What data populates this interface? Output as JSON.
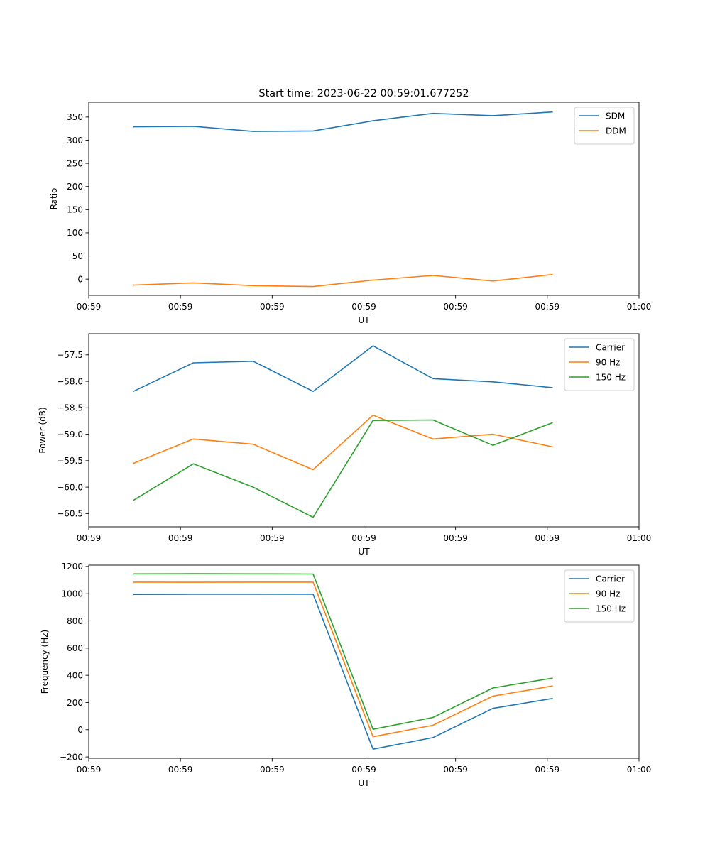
{
  "figure": {
    "title": "Start time: 2023-06-22 00:59:01.677252"
  },
  "colors": {
    "blue": "#1f77b4",
    "orange": "#ff7f0e",
    "green": "#2ca02c"
  },
  "chart_data": [
    {
      "type": "line",
      "xlabel": "UT",
      "ylabel": "Ratio",
      "xlim": [
        0,
        9
      ],
      "ylim": [
        -35,
        382
      ],
      "xticks": [
        0,
        1.5,
        3,
        4.5,
        6,
        7.5,
        9
      ],
      "xtick_labels": [
        "00:59",
        "00:59",
        "00:59",
        "00:59",
        "00:59",
        "00:59",
        "01:00"
      ],
      "yticks": [
        0,
        50,
        100,
        150,
        200,
        250,
        300,
        350
      ],
      "ytick_labels": [
        "0",
        "50",
        "100",
        "150",
        "200",
        "250",
        "300",
        "350"
      ],
      "x": [
        0.73,
        1.71,
        2.69,
        3.67,
        4.65,
        5.63,
        6.61,
        7.59
      ],
      "legend": "upper right",
      "series": [
        {
          "name": "SDM",
          "color": "#1f77b4",
          "values": [
            329,
            330,
            319,
            320,
            342,
            358,
            353,
            361
          ]
        },
        {
          "name": "DDM",
          "color": "#ff7f0e",
          "values": [
            -13,
            -8,
            -14,
            -16,
            -2,
            8,
            -4,
            10
          ]
        }
      ]
    },
    {
      "type": "line",
      "xlabel": "UT",
      "ylabel": "Power (dB)",
      "xlim": [
        0,
        9
      ],
      "ylim": [
        -60.75,
        -57.1
      ],
      "xticks": [
        0,
        1.5,
        3,
        4.5,
        6,
        7.5,
        9
      ],
      "xtick_labels": [
        "00:59",
        "00:59",
        "00:59",
        "00:59",
        "00:59",
        "00:59",
        "01:00"
      ],
      "yticks": [
        -60.5,
        -60.0,
        -59.5,
        -59.0,
        -58.5,
        -58.0,
        -57.5
      ],
      "ytick_labels": [
        "−60.5",
        "−60.0",
        "−59.5",
        "−59.0",
        "−58.5",
        "−58.0",
        "−57.5"
      ],
      "x": [
        0.73,
        1.71,
        2.69,
        3.67,
        4.65,
        5.63,
        6.61,
        7.59
      ],
      "legend": "upper right",
      "series": [
        {
          "name": "Carrier",
          "color": "#1f77b4",
          "values": [
            -58.19,
            -57.65,
            -57.62,
            -58.19,
            -57.33,
            -57.95,
            -58.01,
            -58.12
          ]
        },
        {
          "name": "90 Hz",
          "color": "#ff7f0e",
          "values": [
            -59.55,
            -59.09,
            -59.19,
            -59.67,
            -58.64,
            -59.09,
            -59.0,
            -59.24
          ]
        },
        {
          "name": "150 Hz",
          "color": "#2ca02c",
          "values": [
            -60.25,
            -59.56,
            -60.0,
            -60.57,
            -58.74,
            -58.73,
            -59.21,
            -58.78
          ]
        }
      ]
    },
    {
      "type": "line",
      "xlabel": "UT",
      "ylabel": "Frequency (Hz)",
      "xlim": [
        0,
        9
      ],
      "ylim": [
        -210,
        1210
      ],
      "xticks": [
        0,
        1.5,
        3,
        4.5,
        6,
        7.5,
        9
      ],
      "xtick_labels": [
        "00:59",
        "00:59",
        "00:59",
        "00:59",
        "00:59",
        "00:59",
        "01:00"
      ],
      "yticks": [
        -200,
        0,
        200,
        400,
        600,
        800,
        1000,
        1200
      ],
      "ytick_labels": [
        "−200",
        "0",
        "200",
        "400",
        "600",
        "800",
        "1000",
        "1200"
      ],
      "x": [
        0.73,
        1.71,
        2.69,
        3.67,
        4.65,
        5.63,
        6.61,
        7.59
      ],
      "legend": "upper right",
      "series": [
        {
          "name": "Carrier",
          "color": "#1f77b4",
          "values": [
            995,
            996,
            996,
            997,
            -143,
            -58,
            157,
            230
          ]
        },
        {
          "name": "90 Hz",
          "color": "#ff7f0e",
          "values": [
            1085,
            1084,
            1085,
            1085,
            -52,
            33,
            247,
            322
          ]
        },
        {
          "name": "150 Hz",
          "color": "#2ca02c",
          "values": [
            1146,
            1147,
            1146,
            1145,
            3,
            90,
            307,
            380
          ]
        }
      ]
    }
  ]
}
